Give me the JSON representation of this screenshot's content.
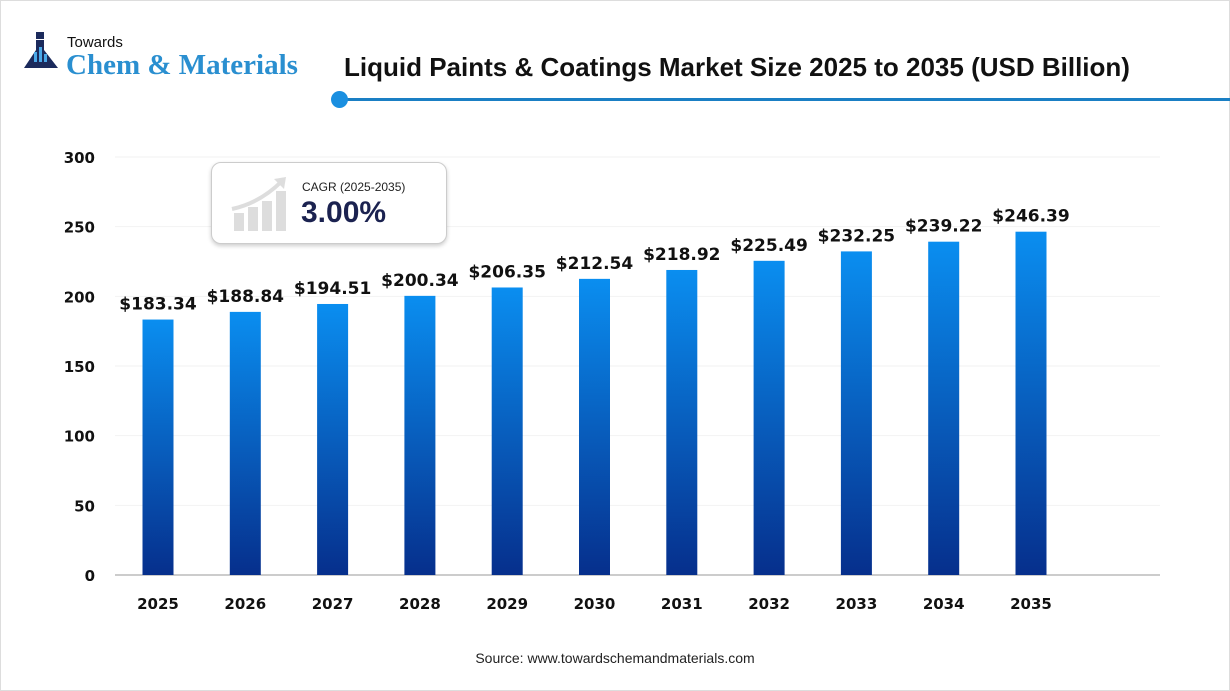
{
  "logo": {
    "top": "Towards",
    "brand": "Chem & Materials"
  },
  "cagr": {
    "label": "CAGR (2025-2035)",
    "value": "3.00%"
  },
  "source": "Source: www.towardschemandmaterials.com",
  "colors": {
    "bar_top": "#0a8ef0",
    "bar_bottom": "#062f8c",
    "accent": "#1a7fc4"
  },
  "chart_data": {
    "type": "bar",
    "title": "Liquid Paints & Coatings Market Size 2025 to 2035 (USD Billion)",
    "categories": [
      "2025",
      "2026",
      "2027",
      "2028",
      "2029",
      "2030",
      "2031",
      "2032",
      "2033",
      "2034",
      "2035"
    ],
    "values": [
      183.34,
      188.84,
      194.51,
      200.34,
      206.35,
      212.54,
      218.92,
      225.49,
      232.25,
      239.22,
      246.39
    ],
    "data_labels": [
      "$183.34",
      "$188.84",
      "$194.51",
      "$200.34",
      "$206.35",
      "$212.54",
      "$218.92",
      "$225.49",
      "$232.25",
      "$239.22",
      "$246.39"
    ],
    "yticks": [
      "0",
      "50",
      "100",
      "150",
      "200",
      "250",
      "300"
    ],
    "ylim": [
      0,
      300
    ],
    "xlabel": "",
    "ylabel": "",
    "grid": true
  }
}
